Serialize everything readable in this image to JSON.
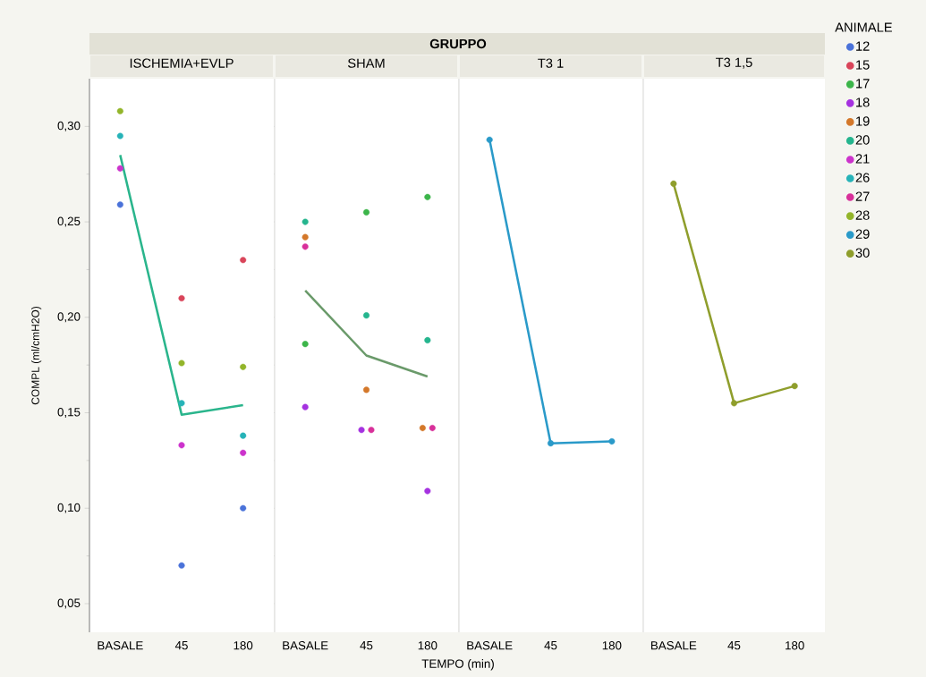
{
  "chart_data": [
    {
      "type": "scatter",
      "title": "ISCHEMIA+EVLP",
      "ylabel": "COMPL (ml/cmH2O)",
      "categories": [
        "BASALE",
        "45",
        "180"
      ],
      "marker": "circle",
      "ylim": [
        0.035,
        0.325
      ],
      "yticks": [
        {
          "value": 0.05,
          "label": "0,05"
        },
        {
          "value": 0.075,
          "label": null
        },
        {
          "value": 0.1,
          "label": "0,10"
        },
        {
          "value": 0.125,
          "label": null
        },
        {
          "value": 0.15,
          "label": "0,15"
        },
        {
          "value": 0.175,
          "label": null
        },
        {
          "value": 0.2,
          "label": "0,20"
        },
        {
          "value": 0.225,
          "label": null
        },
        {
          "value": 0.25,
          "label": "0,25"
        },
        {
          "value": 0.275,
          "label": null
        },
        {
          "value": 0.3,
          "label": "0,30"
        }
      ],
      "series": [
        {
          "color": "#4a72d9",
          "values": [
            0.259,
            0.07,
            0.1
          ]
        },
        {
          "color": "#d9455a",
          "values": [
            null,
            0.21,
            0.23
          ]
        },
        {
          "color": "#cc33cc",
          "values": [
            0.278,
            0.133,
            0.129
          ]
        },
        {
          "color": "#27b3b8",
          "values": [
            0.295,
            0.155,
            0.138
          ]
        },
        {
          "color": "#93b52a",
          "values": [
            0.308,
            0.176,
            0.174
          ]
        },
        {
          "type": "line",
          "marker": "none",
          "color": "#2ab58c",
          "values": [
            0.285,
            0.149,
            0.154
          ]
        }
      ]
    },
    {
      "type": "scatter",
      "title": "SHAM",
      "xlabel": "TEMPO (min)",
      "annotations": [
        "GRUPPO"
      ],
      "categories": [
        "BASALE",
        "45",
        "180"
      ],
      "marker": "circle",
      "tick_labels": "x",
      "ylim": [
        0.035,
        0.325
      ],
      "series": [
        {
          "color": "#3cb54a",
          "values": [
            0.186,
            0.255,
            0.263
          ]
        },
        {
          "color": "#a532e0",
          "values": [
            0.153,
            0.141,
            0.109
          ]
        },
        {
          "color": "#d4782a",
          "values": [
            0.242,
            0.162,
            0.142
          ]
        },
        {
          "color": "#25b58e",
          "values": [
            0.25,
            0.201,
            0.188
          ]
        },
        {
          "color": "#d8309a",
          "values": [
            0.237,
            0.141,
            0.142
          ]
        },
        {
          "type": "line",
          "marker": "none",
          "color": "#6a9a6a",
          "values": [
            0.214,
            0.18,
            0.169
          ]
        }
      ]
    },
    {
      "type": "line",
      "title": "T3 1",
      "categories": [
        "BASALE",
        "45",
        "180"
      ],
      "marker": "circle",
      "tick_labels": "x",
      "ylim": [
        0.035,
        0.325
      ],
      "series": [
        {
          "color": "#2a9ac9",
          "values": [
            0.293,
            0.134,
            0.135
          ]
        }
      ]
    },
    {
      "type": "line",
      "title": "T3 1,5",
      "categories": [
        "BASALE",
        "45",
        "180"
      ],
      "marker": "circle",
      "tick_labels": "x",
      "legend": "right",
      "legend_title": "ANIMALE",
      "ylim": [
        0.035,
        0.325
      ],
      "series": [
        {
          "name": "12",
          "color": "#4a72d9",
          "values": [
            null,
            null,
            null
          ]
        },
        {
          "name": "15",
          "color": "#d9455a",
          "values": [
            null,
            null,
            null
          ]
        },
        {
          "name": "17",
          "color": "#3cb54a",
          "values": [
            null,
            null,
            null
          ]
        },
        {
          "name": "18",
          "color": "#a532e0",
          "values": [
            null,
            null,
            null
          ]
        },
        {
          "name": "19",
          "color": "#d4782a",
          "values": [
            null,
            null,
            null
          ]
        },
        {
          "name": "20",
          "color": "#25b58e",
          "values": [
            null,
            null,
            null
          ]
        },
        {
          "name": "21",
          "color": "#cc33cc",
          "values": [
            null,
            null,
            null
          ]
        },
        {
          "name": "26",
          "color": "#27b3b8",
          "values": [
            null,
            null,
            null
          ]
        },
        {
          "name": "27",
          "color": "#d8309a",
          "values": [
            null,
            null,
            null
          ]
        },
        {
          "name": "28",
          "color": "#93b52a",
          "values": [
            null,
            null,
            null
          ]
        },
        {
          "name": "29",
          "color": "#2a9ac9",
          "values": [
            null,
            null,
            null
          ]
        },
        {
          "name": "30",
          "color": "#8f9e2c",
          "values": [
            0.27,
            0.155,
            0.164
          ]
        }
      ]
    }
  ]
}
